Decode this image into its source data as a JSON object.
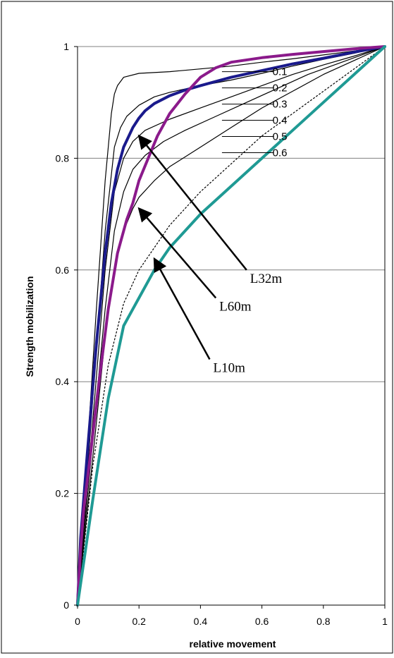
{
  "chart_data": {
    "type": "line",
    "title": "",
    "xlabel": "relative movement",
    "ylabel": "Strength mobilization",
    "xlim": [
      0,
      1
    ],
    "ylim": [
      0,
      1
    ],
    "xticks": [
      "0",
      "0.2",
      "0.4",
      "0.6",
      "0.8",
      "1"
    ],
    "yticks": [
      "0",
      "0.2",
      "0.4",
      "0.6",
      "0.8",
      "1"
    ],
    "grid": "horizontal",
    "legend": "none",
    "colors": {
      "family": "#000000",
      "L32m": "#1a1a8c",
      "L60m": "#8b1a8b",
      "L10m": "#1f9a94",
      "dotted": "#000000",
      "gridline": "#808080"
    },
    "series": [
      {
        "name": "0.1",
        "style": "family",
        "x": [
          0,
          0.03,
          0.06,
          0.09,
          0.11,
          0.12,
          0.13,
          0.15,
          0.2,
          0.3,
          0.4,
          0.5,
          0.6,
          0.7,
          0.8,
          0.9,
          1.0
        ],
        "y": [
          0,
          0.26,
          0.52,
          0.76,
          0.88,
          0.915,
          0.93,
          0.945,
          0.952,
          0.955,
          0.96,
          0.965,
          0.972,
          0.978,
          0.985,
          0.992,
          1.0
        ]
      },
      {
        "name": "0.2",
        "style": "family",
        "x": [
          0,
          0.03,
          0.06,
          0.09,
          0.12,
          0.14,
          0.16,
          0.2,
          0.25,
          0.3,
          0.4,
          0.5,
          0.6,
          0.7,
          0.8,
          0.9,
          1.0
        ],
        "y": [
          0,
          0.22,
          0.45,
          0.67,
          0.82,
          0.855,
          0.875,
          0.895,
          0.91,
          0.918,
          0.93,
          0.94,
          0.952,
          0.965,
          0.977,
          0.988,
          1.0
        ]
      },
      {
        "name": "0.3",
        "style": "family",
        "x": [
          0,
          0.03,
          0.06,
          0.09,
          0.12,
          0.15,
          0.18,
          0.22,
          0.3,
          0.4,
          0.5,
          0.6,
          0.7,
          0.8,
          0.9,
          1.0
        ],
        "y": [
          0,
          0.2,
          0.4,
          0.6,
          0.74,
          0.8,
          0.83,
          0.85,
          0.87,
          0.89,
          0.91,
          0.93,
          0.95,
          0.967,
          0.983,
          1.0
        ]
      },
      {
        "name": "0.4",
        "style": "family",
        "x": [
          0,
          0.03,
          0.06,
          0.09,
          0.12,
          0.15,
          0.18,
          0.22,
          0.28,
          0.35,
          0.45,
          0.55,
          0.65,
          0.75,
          0.85,
          1.0
        ],
        "y": [
          0,
          0.18,
          0.36,
          0.53,
          0.67,
          0.74,
          0.78,
          0.805,
          0.83,
          0.85,
          0.875,
          0.9,
          0.925,
          0.95,
          0.97,
          1.0
        ]
      },
      {
        "name": "0.5",
        "style": "family",
        "x": [
          0,
          0.03,
          0.06,
          0.09,
          0.12,
          0.15,
          0.18,
          0.2,
          0.25,
          0.3,
          0.4,
          0.5,
          0.6,
          0.7,
          0.8,
          0.9,
          1.0
        ],
        "y": [
          0,
          0.16,
          0.32,
          0.48,
          0.6,
          0.67,
          0.71,
          0.73,
          0.76,
          0.785,
          0.82,
          0.855,
          0.89,
          0.92,
          0.95,
          0.975,
          1.0
        ]
      },
      {
        "name": "",
        "style": "dotted",
        "x": [
          0,
          0.05,
          0.1,
          0.15,
          0.2,
          0.25,
          0.3,
          0.4,
          0.5,
          0.6,
          0.7,
          0.8,
          0.9,
          1.0
        ],
        "y": [
          0,
          0.25,
          0.43,
          0.54,
          0.6,
          0.64,
          0.68,
          0.74,
          0.79,
          0.84,
          0.88,
          0.92,
          0.96,
          1.0
        ]
      },
      {
        "name": "L32m",
        "style": "L32m",
        "x": [
          0,
          0.01,
          0.03,
          0.06,
          0.09,
          0.11,
          0.13,
          0.15,
          0.18,
          0.2,
          0.22,
          0.25,
          0.3,
          0.35,
          0.4,
          0.5,
          0.6,
          0.7,
          0.8,
          0.9,
          1.0
        ],
        "y": [
          0,
          0.12,
          0.26,
          0.46,
          0.63,
          0.72,
          0.78,
          0.82,
          0.855,
          0.872,
          0.885,
          0.898,
          0.912,
          0.922,
          0.93,
          0.945,
          0.957,
          0.969,
          0.979,
          0.99,
          1.0
        ]
      },
      {
        "name": "L60m",
        "style": "L60m",
        "x": [
          0,
          0.01,
          0.02,
          0.04,
          0.07,
          0.1,
          0.13,
          0.16,
          0.18,
          0.2,
          0.23,
          0.26,
          0.3,
          0.35,
          0.4,
          0.45,
          0.5,
          0.6,
          0.7,
          0.8,
          0.9,
          1.0
        ],
        "y": [
          0,
          0.1,
          0.17,
          0.26,
          0.4,
          0.53,
          0.63,
          0.69,
          0.72,
          0.76,
          0.8,
          0.84,
          0.88,
          0.915,
          0.945,
          0.962,
          0.972,
          0.98,
          0.986,
          0.991,
          0.996,
          1.0
        ]
      },
      {
        "name": "L10m",
        "style": "L10m",
        "x": [
          0,
          0.05,
          0.1,
          0.15,
          0.18,
          0.2,
          0.25,
          0.3,
          0.35,
          0.4,
          0.5,
          0.6,
          0.7,
          0.8,
          0.9,
          1.0
        ],
        "y": [
          0,
          0.19,
          0.37,
          0.5,
          0.53,
          0.55,
          0.6,
          0.64,
          0.67,
          0.7,
          0.75,
          0.8,
          0.85,
          0.9,
          0.95,
          1.0
        ]
      }
    ],
    "param_labels": [
      {
        "text": "0.1",
        "x": 0.63,
        "y": 0.955
      },
      {
        "text": "0.2",
        "x": 0.63,
        "y": 0.926
      },
      {
        "text": "0.3",
        "x": 0.63,
        "y": 0.897
      },
      {
        "text": "0.4",
        "x": 0.63,
        "y": 0.868
      },
      {
        "text": "0.5",
        "x": 0.63,
        "y": 0.839
      },
      {
        "text": "0.6",
        "x": 0.63,
        "y": 0.81
      }
    ],
    "annotations": [
      {
        "text": "L32m",
        "from": [
          0.55,
          0.6
        ],
        "to": [
          0.2,
          0.84
        ]
      },
      {
        "text": "L60m",
        "from": [
          0.45,
          0.55
        ],
        "to": [
          0.2,
          0.71
        ]
      },
      {
        "text": "L10m",
        "from": [
          0.43,
          0.44
        ],
        "to": [
          0.25,
          0.62
        ]
      }
    ]
  }
}
